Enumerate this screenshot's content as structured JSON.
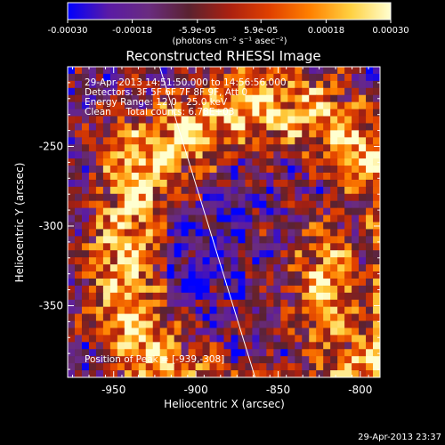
{
  "colorbar": {
    "ticks": [
      "-0.00030",
      "-0.00018",
      "-5.9e-05",
      "5.9e-05",
      "0.00018",
      "0.00030"
    ],
    "tick_values": [
      -0.0003,
      -0.00018,
      -5.9e-05,
      5.9e-05,
      0.00018,
      0.0003
    ],
    "range": [
      -0.0003,
      0.0003
    ],
    "units": "(photons cm⁻² s⁻¹ asec⁻²)",
    "gradient": [
      "#0000ff",
      "#5a1aa6",
      "#6a2c80",
      "#5a2230",
      "#aa2010",
      "#e04000",
      "#ff8000",
      "#ffd040",
      "#ffffd0"
    ]
  },
  "chart_data": {
    "type": "heatmap",
    "title": "Reconstructed RHESSI Image",
    "xlabel": "Heliocentric X (arcsec)",
    "ylabel": "Heliocentric Y (arcsec)",
    "xlim": [
      -978,
      -788
    ],
    "ylim": [
      -395,
      -200
    ],
    "xticks": [
      -950,
      -900,
      -850,
      -800
    ],
    "yticks": [
      -250,
      -300,
      -350
    ],
    "xtick_labels": [
      "-950",
      "-900",
      "-850",
      "-800"
    ],
    "ytick_labels": [
      "-250",
      "-300",
      "-350"
    ],
    "limb_line": [
      [
        -922,
        -200
      ],
      [
        -864,
        -395
      ]
    ],
    "peak": [
      -939,
      -308
    ],
    "annotations": [
      "29-Apr-2013 14:51:50.000 to 14:56:56.000",
      "Detectors: 3F 5F 6F 7F 8F 9F, Att 0",
      "Energy Range: 12.0 - 25.0 keV",
      "Clean     Total counts: 6.78E+03"
    ],
    "peak_label": "Position of Peak = [-939,-308]"
  },
  "footer": {
    "timestamp": "29-Apr-2013 23:37"
  }
}
